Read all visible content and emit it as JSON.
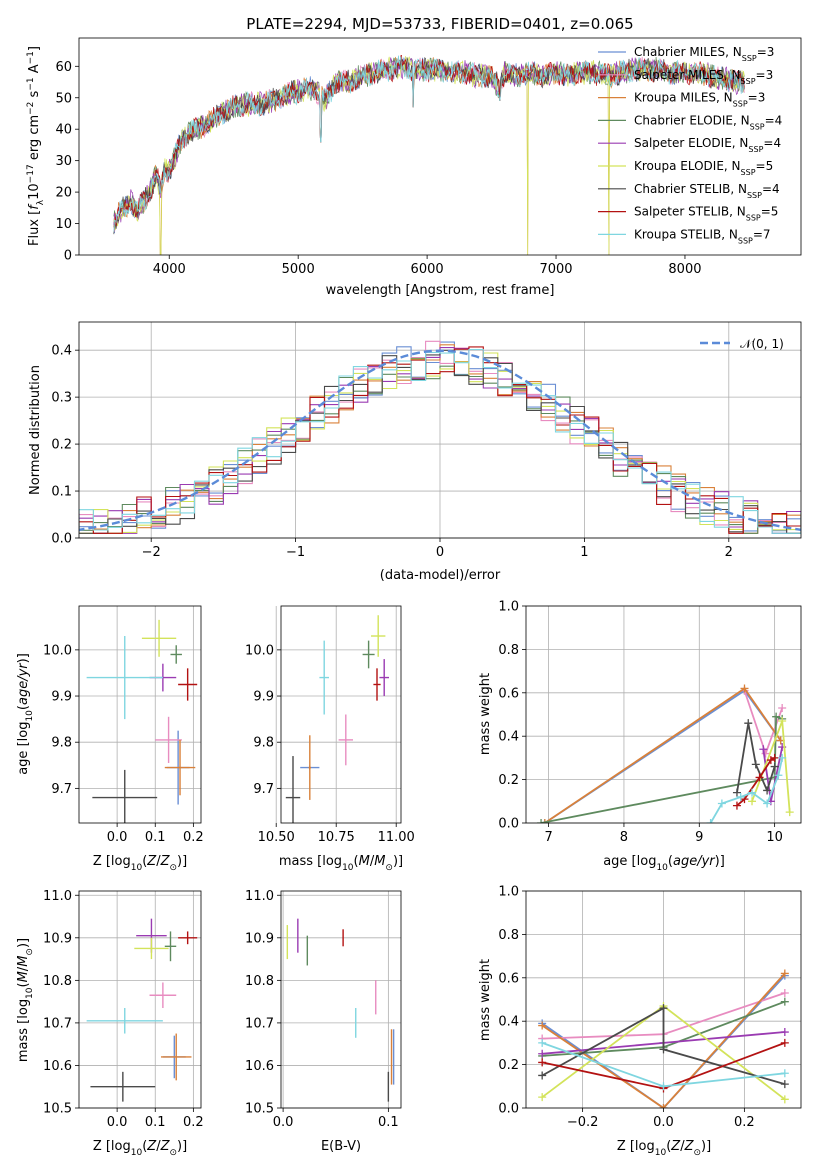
{
  "colors": {
    "Chabrier MILES": "#6a8fd4",
    "Salpeter MILES": "#e88cc0",
    "Kroupa MILES": "#d9813a",
    "Chabrier ELODIE": "#5e8a5e",
    "Salpeter ELODIE": "#9a3bb2",
    "Kroupa ELODIE": "#d3e35a",
    "Chabrier STELIB": "#4a4a4a",
    "Salpeter STELIB": "#b31212",
    "Kroupa STELIB": "#7fd6e0",
    "gauss": "#5b8bd8"
  },
  "chart_data": [
    {
      "id": "spectrum",
      "type": "line",
      "title": "PLATE=2294, MJD=53733, FIBERID=0401, z=0.065",
      "xlabel": "wavelength [Angstrom, rest frame]",
      "ylabel": "Flux [f_λ10^-17 erg cm^-2 s^-1 A^-1]",
      "xlim": [
        3300,
        8900
      ],
      "ylim": [
        0,
        69
      ],
      "xticks": [
        4000,
        5000,
        6000,
        7000,
        8000
      ],
      "yticks": [
        0,
        10,
        20,
        30,
        40,
        50,
        60
      ],
      "legend_loc": "right",
      "series": [
        {
          "name": "Chabrier MILES",
          "nssp": "3",
          "label": "Chabrier MILES, N_SSP=3"
        },
        {
          "name": "Salpeter MILES",
          "nssp": "3",
          "label": "Salpeter MILES, N_SSP=3"
        },
        {
          "name": "Kroupa MILES",
          "nssp": "3",
          "label": "Kroupa MILES, N_SSP=3"
        },
        {
          "name": "Chabrier ELODIE",
          "nssp": "4",
          "label": "Chabrier ELODIE, N_SSP=4"
        },
        {
          "name": "Salpeter ELODIE",
          "nssp": "4",
          "label": "Salpeter ELODIE, N_SSP=4"
        },
        {
          "name": "Kroupa ELODIE",
          "nssp": "5",
          "label": "Kroupa ELODIE, N_SSP=5"
        },
        {
          "name": "Chabrier STELIB",
          "nssp": "4",
          "label": "Chabrier STELIB, N_SSP=4"
        },
        {
          "name": "Salpeter STELIB",
          "nssp": "5",
          "label": "Salpeter STELIB, N_SSP=5"
        },
        {
          "name": "Kroupa STELIB",
          "nssp": "7",
          "label": "Kroupa STELIB, N_SSP=7"
        }
      ],
      "continuum": [
        [
          3570,
          10
        ],
        [
          3620,
          14
        ],
        [
          3700,
          17
        ],
        [
          3750,
          14
        ],
        [
          3800,
          17
        ],
        [
          3850,
          20
        ],
        [
          3900,
          26
        ],
        [
          3930,
          20
        ],
        [
          3960,
          27
        ],
        [
          4000,
          27
        ],
        [
          4100,
          37
        ],
        [
          4200,
          40
        ],
        [
          4300,
          42
        ],
        [
          4400,
          45
        ],
        [
          4500,
          47
        ],
        [
          4600,
          48
        ],
        [
          4700,
          48
        ],
        [
          4800,
          49
        ],
        [
          4900,
          51
        ],
        [
          5000,
          52
        ],
        [
          5100,
          53
        ],
        [
          5150,
          52
        ],
        [
          5200,
          49
        ],
        [
          5300,
          55
        ],
        [
          5400,
          55
        ],
        [
          5500,
          57
        ],
        [
          5600,
          58
        ],
        [
          5700,
          59
        ],
        [
          5800,
          60
        ],
        [
          5900,
          59
        ],
        [
          6000,
          59
        ],
        [
          6100,
          59
        ],
        [
          6200,
          58
        ],
        [
          6300,
          58
        ],
        [
          6400,
          57
        ],
        [
          6500,
          57
        ],
        [
          6560,
          53
        ],
        [
          6600,
          58
        ],
        [
          6700,
          57
        ],
        [
          6800,
          58
        ],
        [
          6900,
          57
        ],
        [
          7000,
          58
        ],
        [
          7100,
          57
        ],
        [
          7200,
          58
        ],
        [
          7300,
          58
        ],
        [
          7400,
          57
        ],
        [
          7500,
          58
        ],
        [
          7600,
          59
        ],
        [
          7700,
          59
        ],
        [
          7800,
          59
        ],
        [
          7900,
          58
        ],
        [
          8000,
          58
        ],
        [
          8100,
          58
        ],
        [
          8200,
          57
        ],
        [
          8300,
          56
        ],
        [
          8400,
          55
        ],
        [
          8460,
          55
        ]
      ],
      "absorption": [
        [
          3933,
          0
        ],
        [
          5175,
          36
        ],
        [
          5893,
          47
        ],
        [
          6563,
          49
        ],
        [
          6780,
          0
        ],
        [
          7410,
          0
        ]
      ]
    },
    {
      "id": "residual-histogram",
      "type": "histogram",
      "xlabel": "(data-model)/error",
      "ylabel": "Normed distribution",
      "xlim": [
        -2.5,
        2.5
      ],
      "ylim": [
        0,
        0.46
      ],
      "xticks": [
        -2,
        -1,
        0,
        1,
        2
      ],
      "yticks": [
        0.0,
        0.1,
        0.2,
        0.3,
        0.4
      ],
      "bin_width": 0.1,
      "legend": "N(0,1)",
      "legend_loc": "top-right",
      "gauss": {
        "mu": 0,
        "sigma": 1
      }
    },
    {
      "id": "age-vs-Z",
      "type": "errorbar",
      "xlabel": "Z [log10(Z/Z⊙)]",
      "ylabel": "age [log10(age/yr)]",
      "xlim": [
        -0.1,
        0.22
      ],
      "ylim": [
        9.625,
        10.095
      ],
      "xticks": [
        0.0,
        0.1,
        0.2
      ],
      "yticks": [
        9.7,
        9.8,
        9.9,
        10.0
      ],
      "points": [
        {
          "series": "Chabrier MILES",
          "x": 0.16,
          "xerr": 0.03,
          "y": 9.745,
          "yerr": 0.08
        },
        {
          "series": "Salpeter MILES",
          "x": 0.135,
          "xerr": 0.035,
          "y": 9.805,
          "yerr": 0.05
        },
        {
          "series": "Kroupa MILES",
          "x": 0.165,
          "xerr": 0.04,
          "y": 9.745,
          "yerr": 0.06
        },
        {
          "series": "Chabrier ELODIE",
          "x": 0.155,
          "xerr": 0.015,
          "y": 9.99,
          "yerr": 0.02
        },
        {
          "series": "Salpeter ELODIE",
          "x": 0.12,
          "xerr": 0.035,
          "y": 9.94,
          "yerr": 0.03
        },
        {
          "series": "Kroupa ELODIE",
          "x": 0.11,
          "xerr": 0.045,
          "y": 10.025,
          "yerr": 0.04
        },
        {
          "series": "Chabrier STELIB",
          "x": 0.02,
          "xerr": 0.085,
          "y": 9.68,
          "yerr": 0.06
        },
        {
          "series": "Salpeter STELIB",
          "x": 0.185,
          "xerr": 0.025,
          "y": 9.925,
          "yerr": 0.035
        },
        {
          "series": "Kroupa STELIB",
          "x": 0.02,
          "xerr": 0.1,
          "y": 9.94,
          "yerr": 0.09
        }
      ]
    },
    {
      "id": "age-vs-mass",
      "type": "errorbar",
      "xlabel": "mass [log10(M/M⊙)]",
      "ylabel": "",
      "xlim": [
        10.52,
        11.02
      ],
      "ylim": [
        9.625,
        10.095
      ],
      "xticks": [
        10.5,
        10.75,
        11.0
      ],
      "xticklabels": [
        "10.50",
        "10.75",
        "11.00"
      ],
      "yticks": [
        9.7,
        9.8,
        9.9,
        10.0
      ],
      "points": [
        {
          "series": "Chabrier MILES",
          "x": 10.64,
          "xerr": 0.04,
          "y": 9.745,
          "yerr": 0.005
        },
        {
          "series": "Salpeter MILES",
          "x": 10.79,
          "xerr": 0.03,
          "y": 9.805,
          "yerr": 0.055
        },
        {
          "series": "Kroupa MILES",
          "x": 10.64,
          "xerr": 0.005,
          "y": 9.745,
          "yerr": 0.07
        },
        {
          "series": "Chabrier ELODIE",
          "x": 10.885,
          "xerr": 0.025,
          "y": 9.99,
          "yerr": 0.03
        },
        {
          "series": "Salpeter ELODIE",
          "x": 10.95,
          "xerr": 0.02,
          "y": 9.94,
          "yerr": 0.04
        },
        {
          "series": "Kroupa ELODIE",
          "x": 10.925,
          "xerr": 0.03,
          "y": 10.03,
          "yerr": 0.045
        },
        {
          "series": "Chabrier STELIB",
          "x": 10.57,
          "xerr": 0.03,
          "y": 9.68,
          "yerr": 0.09
        },
        {
          "series": "Salpeter STELIB",
          "x": 10.92,
          "xerr": 0.015,
          "y": 9.925,
          "yerr": 0.035
        },
        {
          "series": "Kroupa STELIB",
          "x": 10.7,
          "xerr": 0.02,
          "y": 9.94,
          "yerr": 0.08
        }
      ]
    },
    {
      "id": "weight-vs-age",
      "type": "line",
      "xlabel": "age [log10(age/yr)]",
      "ylabel": "mass weight",
      "xlim": [
        6.7,
        10.35
      ],
      "ylim": [
        0,
        1
      ],
      "xticks": [
        7,
        8,
        9,
        10
      ],
      "yticks": [
        0.0,
        0.2,
        0.4,
        0.6,
        0.8,
        1.0
      ],
      "series": [
        {
          "name": "Chabrier MILES",
          "x": [
            6.95,
            9.6,
            10.08
          ],
          "y": [
            0.0,
            0.61,
            0.38
          ]
        },
        {
          "name": "Salpeter MILES",
          "x": [
            9.6,
            9.88,
            10.1
          ],
          "y": [
            0.61,
            0.32,
            0.53
          ]
        },
        {
          "name": "Kroupa MILES",
          "x": [
            6.95,
            9.6,
            10.08
          ],
          "y": [
            0.0,
            0.62,
            0.38
          ]
        },
        {
          "name": "Chabrier ELODIE",
          "x": [
            6.9,
            10.0,
            10.02,
            10.1
          ],
          "y": [
            0.0,
            0.21,
            0.49,
            0.48
          ]
        },
        {
          "name": "Salpeter ELODIE",
          "x": [
            9.85,
            9.95,
            10.1
          ],
          "y": [
            0.34,
            0.1,
            0.35
          ]
        },
        {
          "name": "Kroupa ELODIE",
          "x": [
            9.7,
            10.1,
            10.2
          ],
          "y": [
            0.1,
            0.47,
            0.05
          ]
        },
        {
          "name": "Chabrier STELIB",
          "x": [
            9.5,
            9.65,
            9.75,
            9.9,
            10.0
          ],
          "y": [
            0.14,
            0.46,
            0.27,
            0.15,
            0.26
          ]
        },
        {
          "name": "Salpeter STELIB",
          "x": [
            9.5,
            9.6,
            9.8,
            9.95,
            10.0
          ],
          "y": [
            0.08,
            0.11,
            0.21,
            0.29,
            0.3
          ]
        },
        {
          "name": "Kroupa STELIB",
          "x": [
            9.15,
            9.3,
            9.55,
            9.7,
            9.9,
            10.05,
            10.1
          ],
          "y": [
            0.0,
            0.09,
            0.12,
            0.14,
            0.09,
            0.22,
            0.3
          ]
        }
      ]
    },
    {
      "id": "mass-vs-Z",
      "type": "errorbar",
      "xlabel": "Z [log10(Z/Z⊙)]",
      "ylabel": "mass [log10(M/M⊙)]",
      "xlim": [
        -0.1,
        0.22
      ],
      "ylim": [
        10.5,
        11.01
      ],
      "xticks": [
        0.0,
        0.1,
        0.2
      ],
      "yticks": [
        10.5,
        10.6,
        10.7,
        10.8,
        10.9,
        11.0
      ],
      "points": [
        {
          "series": "Chabrier MILES",
          "x": 0.15,
          "xerr": 0.03,
          "y": 10.62,
          "yerr": 0.05
        },
        {
          "series": "Salpeter MILES",
          "x": 0.12,
          "xerr": 0.035,
          "y": 10.765,
          "yerr": 0.03
        },
        {
          "series": "Kroupa MILES",
          "x": 0.155,
          "xerr": 0.04,
          "y": 10.62,
          "yerr": 0.055
        },
        {
          "series": "Chabrier ELODIE",
          "x": 0.14,
          "xerr": 0.015,
          "y": 10.88,
          "yerr": 0.035
        },
        {
          "series": "Salpeter ELODIE",
          "x": 0.09,
          "xerr": 0.04,
          "y": 10.905,
          "yerr": 0.04
        },
        {
          "series": "Kroupa ELODIE",
          "x": 0.09,
          "xerr": 0.045,
          "y": 10.875,
          "yerr": 0.025
        },
        {
          "series": "Chabrier STELIB",
          "x": 0.015,
          "xerr": 0.085,
          "y": 10.55,
          "yerr": 0.035
        },
        {
          "series": "Salpeter STELIB",
          "x": 0.185,
          "xerr": 0.025,
          "y": 10.9,
          "yerr": 0.015
        },
        {
          "series": "Kroupa STELIB",
          "x": 0.02,
          "xerr": 0.1,
          "y": 10.705,
          "yerr": 0.03
        }
      ]
    },
    {
      "id": "mass-vs-ebv",
      "type": "errorbar",
      "xlabel": "E(B-V)",
      "ylabel": "",
      "xlim": [
        -0.002,
        0.112
      ],
      "ylim": [
        10.5,
        11.01
      ],
      "xticks": [
        0.0,
        0.1
      ],
      "yticks": [
        10.5,
        10.6,
        10.7,
        10.8,
        10.9,
        11.0
      ],
      "points": [
        {
          "series": "Chabrier MILES",
          "x": 0.105,
          "xerr": 0,
          "y": 10.62,
          "yerr": 0.065
        },
        {
          "series": "Salpeter MILES",
          "x": 0.088,
          "xerr": 0,
          "y": 10.76,
          "yerr": 0.04
        },
        {
          "series": "Kroupa MILES",
          "x": 0.103,
          "xerr": 0,
          "y": 10.62,
          "yerr": 0.065
        },
        {
          "series": "Chabrier ELODIE",
          "x": 0.023,
          "xerr": 0,
          "y": 10.87,
          "yerr": 0.035
        },
        {
          "series": "Salpeter ELODIE",
          "x": 0.014,
          "xerr": 0,
          "y": 10.905,
          "yerr": 0.04
        },
        {
          "series": "Kroupa ELODIE",
          "x": 0.004,
          "xerr": 0,
          "y": 10.89,
          "yerr": 0.04
        },
        {
          "series": "Chabrier STELIB",
          "x": 0.1,
          "xerr": 0,
          "y": 10.55,
          "yerr": 0.035
        },
        {
          "series": "Salpeter STELIB",
          "x": 0.057,
          "xerr": 0,
          "y": 10.9,
          "yerr": 0.02
        },
        {
          "series": "Kroupa STELIB",
          "x": 0.069,
          "xerr": 0,
          "y": 10.7,
          "yerr": 0.035
        }
      ]
    },
    {
      "id": "weight-vs-Z",
      "type": "line",
      "xlabel": "Z [log10(Z/Z⊙)]",
      "ylabel": "mass weight",
      "xlim": [
        -0.34,
        0.34
      ],
      "ylim": [
        0,
        1
      ],
      "xticks": [
        -0.2,
        0.0,
        0.2
      ],
      "yticks": [
        0.0,
        0.2,
        0.4,
        0.6,
        0.8,
        1.0
      ],
      "series": [
        {
          "name": "Chabrier MILES",
          "x": [
            -0.3,
            0.0,
            0.3
          ],
          "y": [
            0.39,
            0.0,
            0.61
          ]
        },
        {
          "name": "Salpeter MILES",
          "x": [
            -0.3,
            0.0,
            0.3
          ],
          "y": [
            0.32,
            0.34,
            0.53
          ]
        },
        {
          "name": "Kroupa MILES",
          "x": [
            -0.3,
            0.0,
            0.3
          ],
          "y": [
            0.38,
            0.0,
            0.62
          ]
        },
        {
          "name": "Chabrier ELODIE",
          "x": [
            -0.3,
            0.0,
            0.3
          ],
          "y": [
            0.24,
            0.28,
            0.49
          ]
        },
        {
          "name": "Salpeter ELODIE",
          "x": [
            -0.3,
            0.0,
            0.3
          ],
          "y": [
            0.25,
            0.3,
            0.35
          ]
        },
        {
          "name": "Kroupa ELODIE",
          "x": [
            -0.3,
            0.0,
            0.3
          ],
          "y": [
            0.05,
            0.47,
            0.04
          ]
        },
        {
          "name": "Chabrier STELIB",
          "x": [
            -0.3,
            0.0,
            0.0,
            0.3
          ],
          "y": [
            0.15,
            0.46,
            0.27,
            0.11
          ]
        },
        {
          "name": "Salpeter STELIB",
          "x": [
            -0.3,
            0.0,
            0.3
          ],
          "y": [
            0.21,
            0.09,
            0.3
          ]
        },
        {
          "name": "Kroupa STELIB",
          "x": [
            -0.3,
            0.0,
            0.3
          ],
          "y": [
            0.3,
            0.1,
            0.16
          ]
        }
      ]
    }
  ]
}
